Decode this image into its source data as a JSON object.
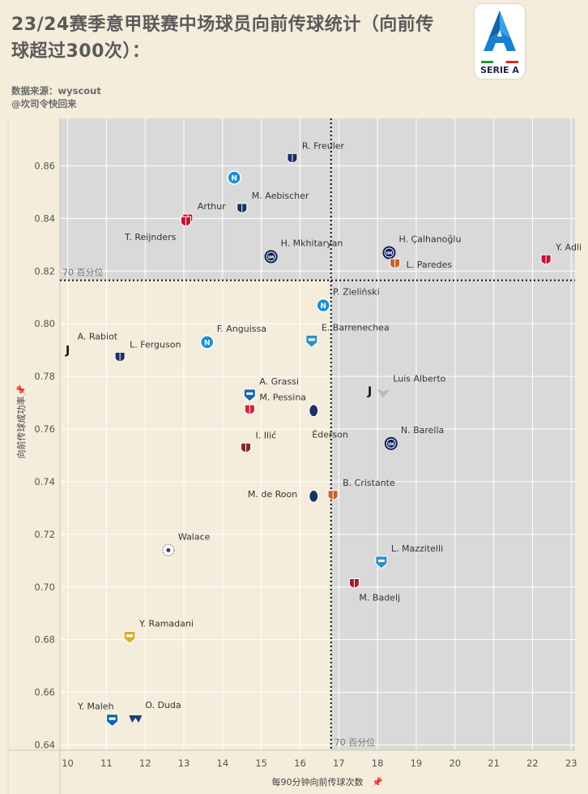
{
  "header": {
    "title": "23/24赛季意甲联赛中场球员向前传球统计（向前传球超过300次）：",
    "source_line1": "数据来源：wyscout",
    "source_line2": "@坎司令快回来",
    "logo_text": "SERIE A"
  },
  "colors": {
    "bg": "#f4eddc",
    "quadrant_gray": "#d9d9d9",
    "grid": "#ffffff",
    "refline": "#111111",
    "club": {
      "Napoli": "#1a8fd4",
      "Inter": "#0b1d5a",
      "Milan": "#c8102e",
      "Bologna": "#1a2f66",
      "Roma": "#c9602a",
      "Juventus": "#111111",
      "Frosinone": "#2a8fc4",
      "Monza": "#d81e35",
      "Empoli": "#1565b0",
      "Torino": "#8b2a1e",
      "Atalanta": "#1b2f6a",
      "Lazio": "#8fc7e8",
      "Genoa": "#a41e2f",
      "Lecce": "#d6b12a",
      "Udinese": "#444444",
      "Verona": "#1f3b84"
    }
  },
  "chart_data": {
    "type": "scatter",
    "title": "23/24赛季意甲联赛中场球员向前传球统计（向前传球超过300次）：",
    "xlabel": "每90分钟向前传球次数",
    "ylabel": "向前传球成功率",
    "xlim": [
      9.8,
      23.1
    ],
    "ylim": [
      0.638,
      0.878
    ],
    "xticks": [
      10,
      11,
      12,
      13,
      14,
      15,
      16,
      17,
      18,
      19,
      20,
      21,
      22,
      23
    ],
    "yticks": [
      0.64,
      0.66,
      0.68,
      0.7,
      0.72,
      0.74,
      0.76,
      0.78,
      0.8,
      0.82,
      0.84,
      0.86
    ],
    "xref": {
      "value": 16.8,
      "label": "70 百分位"
    },
    "yref": {
      "value": 0.8165,
      "label": "70 百分位"
    },
    "points": [
      {
        "name": "R. Freuler",
        "club": "Bologna",
        "x": 15.8,
        "y": 0.8625,
        "label_pos": "above-right"
      },
      {
        "name": "",
        "club": "Napoli",
        "x": 14.3,
        "y": 0.8555,
        "label_pos": "none"
      },
      {
        "name": "M. Aebischer",
        "club": "Bologna",
        "x": 14.5,
        "y": 0.8435,
        "label_pos": "above-right"
      },
      {
        "name": "Arthur",
        "club": "Milan",
        "x": 13.1,
        "y": 0.8395,
        "label_pos": "above-right"
      },
      {
        "name": "T. Reijnders",
        "club": "Milan",
        "x": 13.05,
        "y": 0.8385,
        "label_pos": "below-left"
      },
      {
        "name": "H. Mkhitaryan",
        "club": "Inter",
        "x": 15.25,
        "y": 0.8255,
        "label_pos": "above-right"
      },
      {
        "name": "H. Çalhanoğlu",
        "club": "Inter",
        "x": 18.3,
        "y": 0.827,
        "label_pos": "above-right"
      },
      {
        "name": "L. Paredes",
        "club": "Roma",
        "x": 18.45,
        "y": 0.8225,
        "label_pos": "right"
      },
      {
        "name": "Y. Adli",
        "club": "Milan",
        "x": 22.35,
        "y": 0.824,
        "label_pos": "above-right"
      },
      {
        "name": "P. Zieliński",
        "club": "Napoli",
        "x": 16.6,
        "y": 0.807,
        "label_pos": "above-right"
      },
      {
        "name": "E. Barrenechea",
        "club": "Frosinone",
        "x": 16.3,
        "y": 0.7935,
        "label_pos": "above-right"
      },
      {
        "name": "F. Anguissa",
        "club": "Napoli",
        "x": 13.6,
        "y": 0.793,
        "label_pos": "above-right"
      },
      {
        "name": "A. Rabiot",
        "club": "Juventus",
        "x": 10.0,
        "y": 0.79,
        "label_pos": "above-right"
      },
      {
        "name": "L. Ferguson",
        "club": "Bologna",
        "x": 11.35,
        "y": 0.787,
        "label_pos": "above-right"
      },
      {
        "name": "Luis Alberto",
        "club": "Lazio",
        "x": 18.15,
        "y": 0.774,
        "label_pos": "above-right"
      },
      {
        "name": "",
        "club": "Juventus",
        "x": 17.8,
        "y": 0.7745,
        "label_pos": "none"
      },
      {
        "name": "A. Grassi",
        "club": "Empoli",
        "x": 14.7,
        "y": 0.773,
        "label_pos": "above-right"
      },
      {
        "name": "M. Pessina",
        "club": "Monza",
        "x": 14.7,
        "y": 0.767,
        "label_pos": "above-right"
      },
      {
        "name": "Éderson",
        "club": "Atalanta",
        "x": 16.35,
        "y": 0.767,
        "label_pos": "below-right"
      },
      {
        "name": "N. Barella",
        "club": "Inter",
        "x": 18.35,
        "y": 0.7545,
        "label_pos": "above-right"
      },
      {
        "name": "I. Ilić",
        "club": "Torino",
        "x": 14.6,
        "y": 0.7525,
        "label_pos": "above-right"
      },
      {
        "name": "B. Cristante",
        "club": "Roma",
        "x": 16.85,
        "y": 0.7345,
        "label_pos": "above-right"
      },
      {
        "name": "M. de Roon",
        "club": "Atalanta",
        "x": 16.35,
        "y": 0.7345,
        "label_pos": "left"
      },
      {
        "name": "Walace",
        "club": "Udinese",
        "x": 12.6,
        "y": 0.714,
        "label_pos": "above-right"
      },
      {
        "name": "L. Mazzitelli",
        "club": "Frosinone",
        "x": 18.1,
        "y": 0.7095,
        "label_pos": "above-right"
      },
      {
        "name": "M. Badelj",
        "club": "Genoa",
        "x": 17.4,
        "y": 0.701,
        "label_pos": "below-right"
      },
      {
        "name": "Y. Ramadani",
        "club": "Lecce",
        "x": 11.6,
        "y": 0.681,
        "label_pos": "above-right"
      },
      {
        "name": "Y. Maleh",
        "club": "Empoli",
        "x": 11.15,
        "y": 0.6495,
        "label_pos": "above-left"
      },
      {
        "name": "O. Duda",
        "club": "Verona",
        "x": 11.75,
        "y": 0.65,
        "label_pos": "above-right"
      }
    ]
  }
}
